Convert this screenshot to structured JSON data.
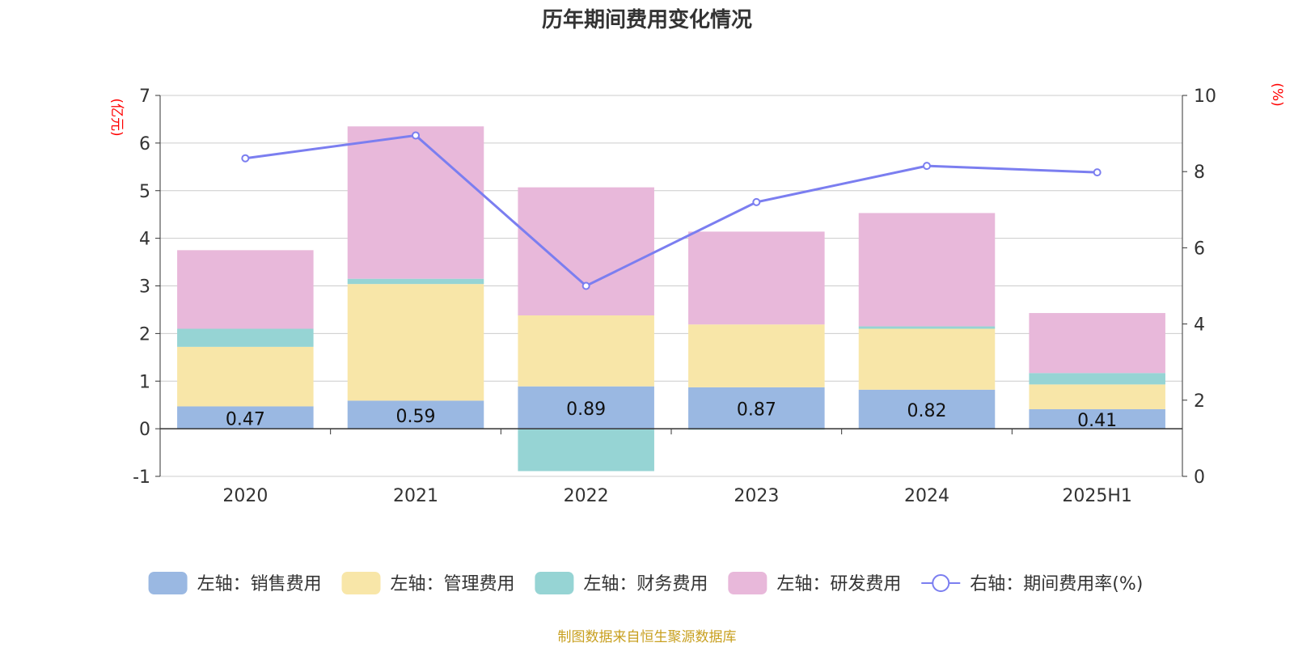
{
  "colors": {
    "sales": "#9ab8e2",
    "admin": "#f8e6a8",
    "finance": "#96d4d4",
    "rd": "#e8b8da",
    "rate": "#7b7ef0",
    "unit": "#ff0000",
    "source": "#c8a020"
  },
  "source_text": "制图数据来自恒生聚源数据库",
  "chart_data": {
    "type": "bar",
    "stacked": true,
    "title": "历年期间费用变化情况",
    "left_axis_unit": "(亿元)",
    "right_axis_unit": "(%)",
    "categories": [
      "2020",
      "2021",
      "2022",
      "2023",
      "2024",
      "2025H1"
    ],
    "left_ylim": [
      -1,
      7
    ],
    "left_ticks": [
      "-1",
      "0",
      "1",
      "2",
      "3",
      "4",
      "5",
      "6",
      "7"
    ],
    "right_ylim": [
      0,
      10
    ],
    "right_ticks": [
      "0",
      "2",
      "4",
      "6",
      "8",
      "10"
    ],
    "grid": true,
    "legend_position": "bottom",
    "series": [
      {
        "name": "左轴：销售费用",
        "key": "sales",
        "axis": "left",
        "values": [
          0.47,
          0.59,
          0.89,
          0.87,
          0.82,
          0.41
        ],
        "labels": [
          "0.47",
          "0.59",
          "0.89",
          "0.87",
          "0.82",
          "0.41"
        ]
      },
      {
        "name": "左轴：管理费用",
        "key": "admin",
        "axis": "left",
        "values": [
          1.25,
          2.45,
          1.49,
          1.32,
          1.28,
          0.52
        ]
      },
      {
        "name": "左轴：财务费用",
        "key": "finance",
        "axis": "left",
        "values": [
          0.38,
          0.11,
          -0.89,
          -0.02,
          0.05,
          0.24
        ]
      },
      {
        "name": "左轴：研发费用",
        "key": "rd",
        "axis": "left",
        "values": [
          1.65,
          3.2,
          2.69,
          1.95,
          2.38,
          1.26
        ]
      },
      {
        "name": "右轴：期间费用率(%)",
        "key": "rate",
        "axis": "right",
        "type": "line",
        "values": [
          8.35,
          8.95,
          5.0,
          7.2,
          8.15,
          7.98
        ]
      }
    ]
  }
}
